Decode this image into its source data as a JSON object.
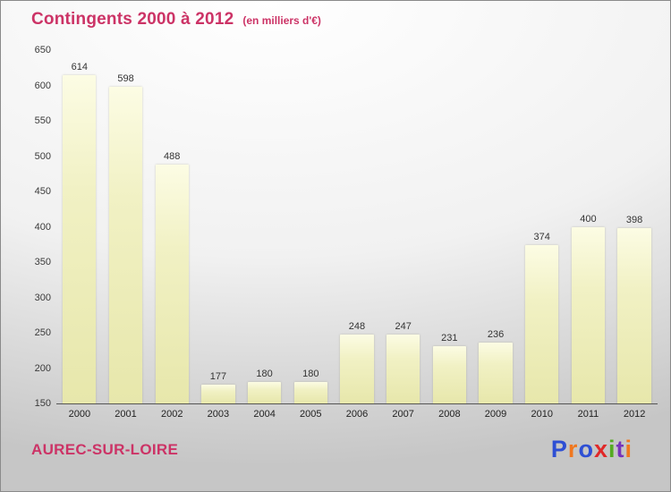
{
  "title": "Contingents 2000 à 2012",
  "subtitle": "(en milliers d'€)",
  "colors": {
    "title": "#cc3366",
    "place": "#cc3366",
    "value_label": "#333333",
    "axis": "#555555",
    "bar_top": "#fcfce4",
    "bar_bottom": "#e7e7ab"
  },
  "chart_data": {
    "type": "bar",
    "title": "Contingents 2000 à 2012",
    "subtitle": "(en milliers d'€)",
    "categories": [
      "2000",
      "2001",
      "2002",
      "2003",
      "2004",
      "2005",
      "2006",
      "2007",
      "2008",
      "2009",
      "2010",
      "2011",
      "2012"
    ],
    "values": [
      614,
      598,
      488,
      177,
      180,
      180,
      248,
      247,
      231,
      236,
      374,
      400,
      398
    ],
    "xlabel": "",
    "ylabel": "",
    "ylim": [
      150,
      650
    ],
    "ytick_step": 50,
    "grid": false,
    "legend": "none",
    "value_labels_shown": true
  },
  "footer": {
    "place": "AUREC-SUR-LOIRE",
    "logo_letters": [
      {
        "ch": "P",
        "color": "#2e4fd4"
      },
      {
        "ch": "r",
        "color": "#f07820"
      },
      {
        "ch": "o",
        "color": "#2e4fd4"
      },
      {
        "ch": "x",
        "color": "#e02828"
      },
      {
        "ch": "i",
        "color": "#55aa22"
      },
      {
        "ch": "t",
        "color": "#7733bb"
      },
      {
        "ch": "i",
        "color": "#f07820"
      }
    ]
  }
}
